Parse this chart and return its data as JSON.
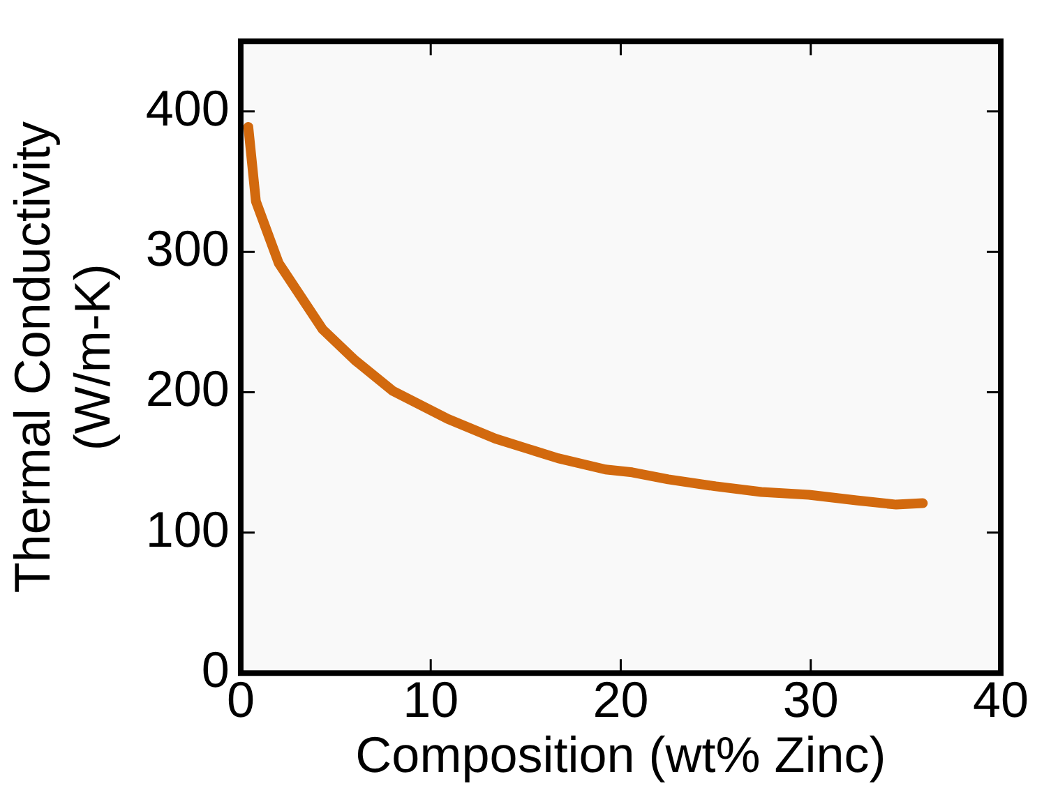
{
  "chart_data": {
    "type": "line",
    "xlabel": "Composition (wt% Zinc)",
    "ylabel": "Thermal Conductivity\n(W/m-K)",
    "xlim": [
      0,
      40
    ],
    "xticks": [
      0,
      10,
      20,
      30,
      40
    ],
    "ylim": [
      0,
      450
    ],
    "yticks": [
      0,
      100,
      200,
      300,
      400
    ],
    "grid": false,
    "legend": false,
    "marker": "none",
    "line_style": "solid",
    "series": [
      {
        "color": "#d2690e",
        "x": [
          0.4,
          0.8,
          2,
          4.3,
          6,
          8,
          10.9,
          13.4,
          16.7,
          19.2,
          20.6,
          22.5,
          25,
          27.4,
          29.9,
          32.4,
          34.5,
          35.9
        ],
        "values": [
          389,
          336,
          292,
          245,
          223,
          201,
          181,
          167,
          153,
          145,
          143,
          138,
          133,
          129,
          127,
          123,
          120,
          121
        ]
      }
    ]
  }
}
